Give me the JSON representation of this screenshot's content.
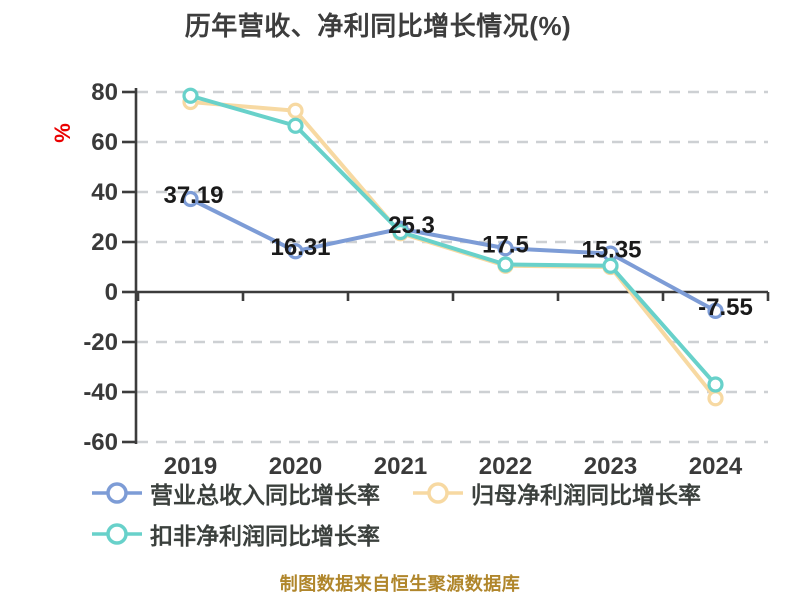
{
  "title": "历年营收、净利同比增长情况(%)",
  "caption": "制图数据来自恒生聚源数据库",
  "colors": {
    "background": "#ffffff",
    "grid": "#cdd0d3",
    "axis": "#3c3c3c",
    "tick_label": "#3a3a3a",
    "data_label": "#1a1a1a",
    "title_text": "#3d3d3d",
    "legend_text": "#3b403d",
    "caption_text": "#b0862b",
    "unit_label": "#ea0000",
    "marker_fill": "#ffffff"
  },
  "chart_data": {
    "type": "line",
    "title": "历年营收、净利同比增长情况(%)",
    "categories": [
      "2019",
      "2020",
      "2021",
      "2022",
      "2023",
      "2024"
    ],
    "series": [
      {
        "name": "营业总收入同比增长率",
        "color": "#7d9cd6",
        "values": [
          37.19,
          16.31,
          25.3,
          17.5,
          15.35,
          -7.55
        ],
        "point_labels": [
          "37.19",
          "16.31",
          "25.3",
          "17.5",
          "15.35",
          "-7.55"
        ]
      },
      {
        "name": "归母净利润同比增长率",
        "color": "#f7d9a2",
        "values": [
          76,
          72.5,
          23.5,
          10.5,
          10,
          -42.5
        ],
        "point_labels": null
      },
      {
        "name": "扣非净利润同比增长率",
        "color": "#68d1ca",
        "values": [
          78.5,
          66.5,
          24,
          11,
          10.5,
          -37
        ],
        "point_labels": null
      }
    ],
    "ylabel": "%",
    "xlabel": "",
    "ylim": [
      -60,
      80
    ],
    "ytick_step": 20,
    "ytick_labels": [
      "80",
      "60",
      "40",
      "20",
      "0",
      "-20",
      "-40",
      "-60"
    ],
    "grid": "horizontal-dashed",
    "legend_position": "bottom-left"
  }
}
